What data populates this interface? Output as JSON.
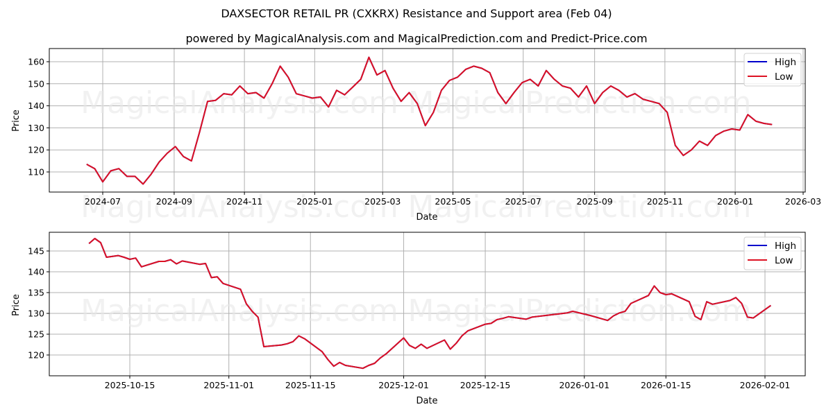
{
  "header": {
    "title": "DAXSECTOR RETAIL PR (CXKRX) Resistance and Support area (Feb 04)",
    "subtitle": "powered by MagicalAnalysis.com and MagicalPrediction.com and Predict-Price.com"
  },
  "watermarks": [
    "MagicalAnalysis.com",
    "MagicalPrediction.com"
  ],
  "colors": {
    "high": "#0000cc",
    "low": "#dd1122",
    "grid": "#b0b0b0",
    "watermark": "#e8e8e8"
  },
  "chart_data": [
    {
      "type": "line",
      "title": "",
      "xlabel": "Date",
      "ylabel": "Price",
      "x_ticks": [
        "2024-07",
        "2024-09",
        "2024-11",
        "2025-01",
        "2025-03",
        "2025-05",
        "2025-07",
        "2025-09",
        "2025-11",
        "2026-01",
        "2026-03"
      ],
      "y_ticks": [
        110,
        120,
        130,
        140,
        150,
        160
      ],
      "ylim": [
        101,
        166
      ],
      "grid": true,
      "legend": {
        "position": "upper right",
        "entries": [
          "High",
          "Low"
        ]
      },
      "series": [
        {
          "name": "High",
          "color": "#0000cc",
          "x": [
            "2024-06-17",
            "2024-06-24",
            "2024-07-01",
            "2024-07-08",
            "2024-07-15",
            "2024-07-22",
            "2024-07-29",
            "2024-08-05",
            "2024-08-12",
            "2024-08-19",
            "2024-08-26",
            "2024-09-02",
            "2024-09-09",
            "2024-09-16",
            "2024-09-23",
            "2024-09-30",
            "2024-10-07",
            "2024-10-14",
            "2024-10-21",
            "2024-10-28",
            "2024-11-04",
            "2024-11-11",
            "2024-11-18",
            "2024-11-25",
            "2024-12-02",
            "2024-12-09",
            "2024-12-16",
            "2024-12-23",
            "2024-12-30",
            "2025-01-06",
            "2025-01-13",
            "2025-01-20",
            "2025-01-27",
            "2025-02-03",
            "2025-02-10",
            "2025-02-17",
            "2025-02-24",
            "2025-03-03",
            "2025-03-10",
            "2025-03-17",
            "2025-03-24",
            "2025-03-31",
            "2025-04-07",
            "2025-04-14",
            "2025-04-21",
            "2025-04-28",
            "2025-05-05",
            "2025-05-12",
            "2025-05-19",
            "2025-05-26",
            "2025-06-02",
            "2025-06-09",
            "2025-06-16",
            "2025-06-23",
            "2025-06-30",
            "2025-07-07",
            "2025-07-14",
            "2025-07-21",
            "2025-07-28",
            "2025-08-04",
            "2025-08-11",
            "2025-08-18",
            "2025-08-25",
            "2025-09-01",
            "2025-09-08",
            "2025-09-15",
            "2025-09-22",
            "2025-09-29",
            "2025-10-06",
            "2025-10-13",
            "2025-10-20",
            "2025-10-27",
            "2025-11-03",
            "2025-11-10",
            "2025-11-17",
            "2025-11-24",
            "2025-12-01",
            "2025-12-08",
            "2025-12-15",
            "2025-12-22",
            "2025-12-29",
            "2026-01-05",
            "2026-01-12",
            "2026-01-19",
            "2026-01-26",
            "2026-02-02"
          ],
          "values": [
            113.5,
            111.5,
            105.5,
            110.5,
            111.5,
            108,
            108,
            104.5,
            109,
            114.5,
            118.5,
            121.5,
            117,
            115,
            128,
            142,
            142.5,
            145.5,
            145,
            149,
            145.5,
            146,
            143.5,
            150,
            158,
            153,
            145.5,
            144.5,
            143.5,
            144,
            139.5,
            147,
            145,
            148.5,
            152,
            162,
            154,
            156,
            148,
            142,
            146,
            141,
            131,
            137,
            147,
            151.5,
            153,
            156.5,
            158,
            157,
            155,
            146,
            141,
            146,
            150.5,
            152,
            149,
            156,
            152,
            149,
            148,
            144,
            149,
            141,
            146,
            149,
            147,
            144,
            145.5,
            143,
            142,
            141,
            137,
            122,
            117.5,
            120,
            124,
            122,
            126.5,
            128.5,
            129.5,
            129,
            136,
            133,
            132,
            131.5
          ]
        },
        {
          "name": "Low",
          "color": "#dd1122",
          "x": "same-as-High",
          "values": "overlaps High"
        }
      ]
    },
    {
      "type": "line",
      "title": "",
      "xlabel": "Date",
      "ylabel": "Price",
      "x_ticks": [
        "2025-10-15",
        "2025-11-01",
        "2025-11-15",
        "2025-12-01",
        "2025-12-15",
        "2026-01-01",
        "2026-01-15",
        "2026-02-01"
      ],
      "y_ticks": [
        120,
        125,
        130,
        135,
        140,
        145
      ],
      "ylim": [
        115,
        149.5
      ],
      "grid": true,
      "legend": {
        "position": "upper right",
        "entries": [
          "High",
          "Low"
        ]
      },
      "series": [
        {
          "name": "High",
          "color": "#0000cc",
          "x": [
            "2025-10-08",
            "2025-10-09",
            "2025-10-10",
            "2025-10-11",
            "2025-10-13",
            "2025-10-14",
            "2025-10-15",
            "2025-10-16",
            "2025-10-17",
            "2025-10-20",
            "2025-10-21",
            "2025-10-22",
            "2025-10-23",
            "2025-10-24",
            "2025-10-27",
            "2025-10-28",
            "2025-10-29",
            "2025-10-30",
            "2025-10-31",
            "2025-11-03",
            "2025-11-04",
            "2025-11-05",
            "2025-11-06",
            "2025-11-07",
            "2025-11-10",
            "2025-11-11",
            "2025-11-12",
            "2025-11-13",
            "2025-11-14",
            "2025-11-17",
            "2025-11-18",
            "2025-11-19",
            "2025-11-20",
            "2025-11-21",
            "2025-11-24",
            "2025-11-25",
            "2025-11-26",
            "2025-11-27",
            "2025-11-28",
            "2025-12-01",
            "2025-12-02",
            "2025-12-03",
            "2025-12-04",
            "2025-12-05",
            "2025-12-08",
            "2025-12-09",
            "2025-12-10",
            "2025-12-11",
            "2025-12-12",
            "2025-12-15",
            "2025-12-16",
            "2025-12-17",
            "2025-12-18",
            "2025-12-19",
            "2025-12-22",
            "2025-12-23",
            "2025-12-29",
            "2025-12-30",
            "2026-01-02",
            "2026-01-05",
            "2026-01-06",
            "2026-01-07",
            "2026-01-08",
            "2026-01-09",
            "2026-01-12",
            "2026-01-13",
            "2026-01-14",
            "2026-01-15",
            "2026-01-16",
            "2026-01-19",
            "2026-01-20",
            "2026-01-21",
            "2026-01-22",
            "2026-01-23",
            "2026-01-26",
            "2026-01-27",
            "2026-01-28",
            "2026-01-29",
            "2026-01-30",
            "2026-02-02"
          ],
          "values": [
            146.8,
            148,
            147,
            143.5,
            143.9,
            143.5,
            143,
            143.3,
            141.2,
            142.5,
            142.5,
            142.9,
            141.9,
            142.6,
            141.8,
            142,
            138.6,
            138.8,
            137.2,
            135.8,
            132.3,
            130.5,
            129.1,
            122,
            122.4,
            122.7,
            123.2,
            124.6,
            123.9,
            120.8,
            118.9,
            117.3,
            118.2,
            117.5,
            116.8,
            117.5,
            118,
            119.3,
            120.3,
            124.1,
            122.3,
            121.6,
            122.6,
            121.6,
            123.6,
            121.4,
            122.8,
            124.6,
            125.8,
            127.4,
            127.6,
            128.5,
            128.8,
            129.2,
            128.6,
            129.1,
            130.1,
            130.5,
            129.5,
            128.3,
            129.4,
            130.1,
            130.5,
            132.4,
            134.3,
            136.6,
            135,
            134.5,
            134.7,
            132.8,
            129.3,
            128.5,
            132.8,
            132.2,
            133.1,
            133.8,
            132.4,
            129.1,
            128.9,
            131.9
          ]
        },
        {
          "name": "Low",
          "color": "#dd1122",
          "x": "same-as-High",
          "values": "overlaps High"
        }
      ]
    }
  ]
}
